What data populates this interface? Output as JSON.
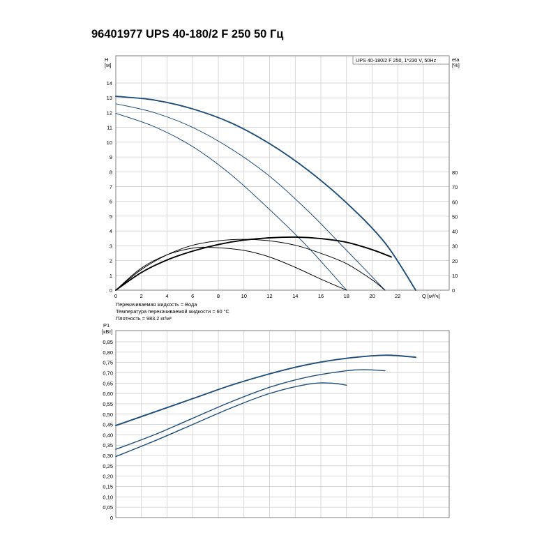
{
  "page": {
    "title": "96401977 UPS 40-180/2 F 250 50 Гц"
  },
  "fluid_notes": [
    "Перекачиваемая жидкость = Вода",
    "Температура перекачиваемой жидкости = 60 °C",
    "Плотность = 983.2 кг/м³"
  ],
  "colors": {
    "curve_blue": "#1f4e79",
    "curve_black": "#000000",
    "grid": "#c8c8c8",
    "frame": "#7f7f7f"
  },
  "chart_data": [
    {
      "type": "line",
      "legend_box": "UPS 40-180/2 F 250, 1*230 V, 50Hz",
      "legend_placement": "top-right",
      "ylabel": "H",
      "yunit": "[м]",
      "y2label": "eta",
      "y2unit": "[%]",
      "xlabel": "Q",
      "xunit": "[м³/ч]",
      "xlim": [
        0,
        26
      ],
      "ylim": [
        0,
        15
      ],
      "y2lim": [
        0,
        80
      ],
      "xticks": [
        0,
        2,
        4,
        6,
        8,
        10,
        12,
        14,
        16,
        18,
        20,
        22
      ],
      "yticks": [
        0,
        1,
        2,
        3,
        4,
        5,
        6,
        7,
        8,
        9,
        10,
        11,
        12,
        13,
        14
      ],
      "y2ticks": [
        0,
        10,
        20,
        30,
        40,
        50,
        60,
        70,
        80
      ],
      "grid": true,
      "series": [
        {
          "kind": "head",
          "axis": "left",
          "x": [
            0,
            3,
            6,
            9,
            12,
            15,
            18,
            21,
            23.4
          ],
          "y": [
            13.1,
            12.85,
            12.25,
            11.3,
            9.9,
            8.1,
            5.9,
            3.2,
            0
          ]
        },
        {
          "kind": "head",
          "axis": "left",
          "x": [
            0,
            3,
            6,
            9,
            12,
            15,
            18,
            21
          ],
          "y": [
            12.6,
            12.0,
            11.0,
            9.55,
            7.7,
            5.35,
            2.7,
            0
          ]
        },
        {
          "kind": "head",
          "axis": "left",
          "x": [
            0,
            3,
            6,
            9,
            12,
            15,
            18
          ],
          "y": [
            11.95,
            11.05,
            9.7,
            7.8,
            5.45,
            2.9,
            0
          ]
        },
        {
          "kind": "efficiency",
          "axis": "right",
          "x": [
            0,
            2,
            4,
            6,
            8,
            10,
            12,
            14,
            16,
            18,
            20,
            21.5
          ],
          "y": [
            0,
            12,
            20.5,
            26.5,
            31,
            34,
            35.5,
            36,
            35,
            32.5,
            27.5,
            22.5
          ]
        },
        {
          "kind": "efficiency",
          "axis": "right",
          "x": [
            0,
            2,
            4,
            6,
            8,
            10,
            12,
            14,
            16,
            18,
            20,
            21
          ],
          "y": [
            0,
            14,
            24,
            30.5,
            33.5,
            34.5,
            33.5,
            30.5,
            25,
            18,
            7,
            0
          ]
        },
        {
          "kind": "efficiency",
          "axis": "right",
          "x": [
            0,
            2,
            4,
            6,
            7.5,
            10,
            12,
            14,
            16,
            18
          ],
          "y": [
            0,
            15,
            24,
            28.5,
            29,
            27,
            22.5,
            15.5,
            7.5,
            0
          ]
        }
      ]
    },
    {
      "type": "line",
      "ylabel": "P1",
      "yunit": "[кВт]",
      "xlim": [
        0,
        26
      ],
      "ylim": [
        0,
        0.9
      ],
      "yticks": [
        "0",
        "0,05",
        "0,10",
        "0,15",
        "0,20",
        "0,25",
        "0,30",
        "0,35",
        "0,40",
        "0,45",
        "0,50",
        "0,55",
        "0,60",
        "0,65",
        "0,70",
        "0,75",
        "0,80",
        "0,85"
      ],
      "ytick_values": [
        0,
        0.05,
        0.1,
        0.15,
        0.2,
        0.25,
        0.3,
        0.35,
        0.4,
        0.45,
        0.5,
        0.55,
        0.6,
        0.65,
        0.7,
        0.75,
        0.8,
        0.85
      ],
      "grid": true,
      "series": [
        {
          "kind": "power",
          "x": [
            0,
            3,
            6,
            9,
            12,
            15,
            18,
            21,
            23.4
          ],
          "y": [
            0.445,
            0.51,
            0.575,
            0.64,
            0.695,
            0.74,
            0.77,
            0.785,
            0.775
          ]
        },
        {
          "kind": "power",
          "x": [
            0,
            3,
            6,
            9,
            12,
            15,
            18,
            19.5,
            21
          ],
          "y": [
            0.33,
            0.4,
            0.48,
            0.56,
            0.63,
            0.68,
            0.71,
            0.715,
            0.71
          ]
        },
        {
          "kind": "power",
          "x": [
            0,
            3,
            6,
            9,
            12,
            15,
            16.8,
            18
          ],
          "y": [
            0.295,
            0.37,
            0.45,
            0.53,
            0.6,
            0.645,
            0.65,
            0.64
          ]
        }
      ]
    }
  ]
}
